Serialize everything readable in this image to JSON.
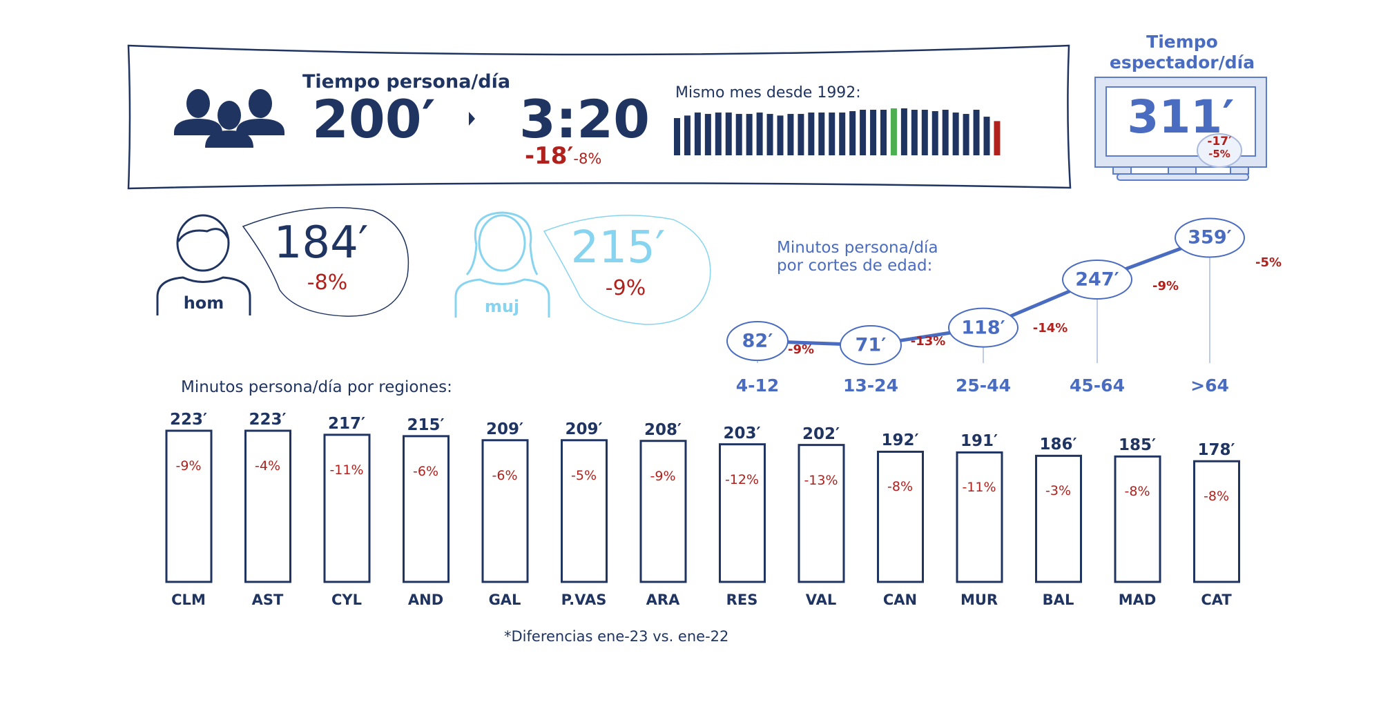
{
  "colors": {
    "navy": "#1f3461",
    "red": "#b0201c",
    "blue": "#4a6cc0",
    "cyan": "#86d4f0",
    "green": "#4caf50",
    "tv_fill": "#dde5f5"
  },
  "header": {
    "title": "Tiempo persona/día",
    "minutes": "200′",
    "hours": "3:20",
    "diff_minutes": "-18′",
    "diff_pct": "-8%",
    "icon": "people-group-icon"
  },
  "history": {
    "label": "Mismo mes desde 1992:",
    "relative_values": [
      161,
      172,
      185,
      179,
      185,
      185,
      179,
      179,
      185,
      179,
      172,
      179,
      179,
      185,
      185,
      185,
      185,
      191,
      197,
      197,
      197,
      203,
      203,
      197,
      197,
      191,
      197,
      185,
      179,
      197,
      167,
      148
    ],
    "highlight_max_index": 21,
    "current_index": 31
  },
  "viewer": {
    "title_line1": "Tiempo",
    "title_line2": "espectador/día",
    "value": "311′",
    "diff_minutes": "-17′",
    "diff_pct": "-5%",
    "icon": "tv-icon"
  },
  "gender": [
    {
      "label": "hom",
      "value": "184′",
      "pct": "-8%",
      "icon": "man-icon"
    },
    {
      "label": "muj",
      "value": "215′",
      "pct": "-9%",
      "icon": "woman-icon"
    }
  ],
  "chart_data": [
    {
      "type": "line",
      "title_line1": "Minutos persona/día",
      "title_line2": "por cortes de edad:",
      "categories": [
        "4-12",
        "13-24",
        "25-44",
        "45-64",
        ">64"
      ],
      "values": [
        82,
        71,
        118,
        247,
        359
      ],
      "labels": [
        "82′",
        "71′",
        "118′",
        "247′",
        "359′"
      ],
      "changes": [
        "-9%",
        "-13%",
        "-14%",
        "-9%",
        "-5%"
      ]
    },
    {
      "type": "bar",
      "title": "Minutos persona/día por regiones:",
      "categories": [
        "CLM",
        "AST",
        "CYL",
        "AND",
        "GAL",
        "P.VAS",
        "ARA",
        "RES",
        "VAL",
        "CAN",
        "MUR",
        "BAL",
        "MAD",
        "CAT"
      ],
      "values": [
        223,
        223,
        217,
        215,
        209,
        209,
        208,
        203,
        202,
        192,
        191,
        186,
        185,
        178
      ],
      "labels": [
        "223′",
        "223′",
        "217′",
        "215′",
        "209′",
        "209′",
        "208′",
        "203′",
        "202′",
        "192′",
        "191′",
        "186′",
        "185′",
        "178′"
      ],
      "changes": [
        "-9%",
        "-4%",
        "-11%",
        "-6%",
        "-6%",
        "-5%",
        "-9%",
        "-12%",
        "-13%",
        "-8%",
        "-11%",
        "-3%",
        "-8%",
        "-8%"
      ]
    }
  ],
  "footnote": "*Diferencias ene-23 vs. ene-22"
}
